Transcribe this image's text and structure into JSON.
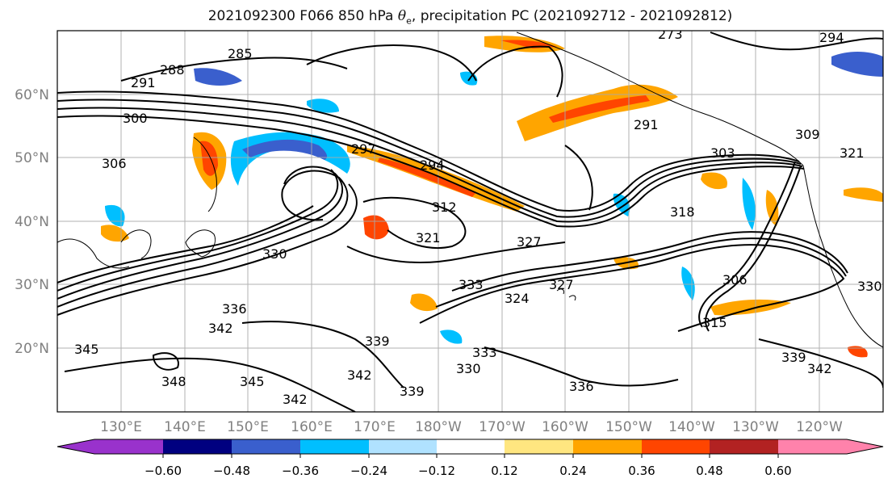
{
  "title": {
    "prefix": "2021092300 F066 850 hPa ",
    "symbol": "θ",
    "subscript": "e",
    "suffix": ", precipitation PC (2021092712 - 2021092812)"
  },
  "map": {
    "projection": "PlateCarree",
    "lat_ticks": [
      "60°N",
      "50°N",
      "40°N",
      "30°N",
      "20°N"
    ],
    "lon_ticks": [
      "130°E",
      "140°E",
      "150°E",
      "160°E",
      "170°E",
      "180°W",
      "170°W",
      "160°W",
      "150°W",
      "140°W",
      "130°W",
      "120°W"
    ],
    "contour_labels": [
      "273",
      "294",
      "285",
      "288",
      "291",
      "300",
      "306",
      "297",
      "294",
      "291",
      "303",
      "309",
      "321",
      "312",
      "318",
      "321",
      "327",
      "324",
      "327",
      "330",
      "333",
      "336",
      "342",
      "345",
      "348",
      "345",
      "342",
      "339",
      "339",
      "342",
      "336",
      "333",
      "330",
      "339",
      "342",
      "306",
      "315",
      "330"
    ],
    "contour_color": "#000000",
    "coastline_color": "#000000",
    "gridline_color": "#aaaaaa"
  },
  "colorbar": {
    "levels": [
      "−0.60",
      "−0.48",
      "−0.36",
      "−0.24",
      "−0.12",
      "0.12",
      "0.24",
      "0.36",
      "0.48",
      "0.60"
    ],
    "colors": [
      "#9932cc",
      "#000080",
      "#3a5fcd",
      "#00bfff",
      "#b0e2ff",
      "#ffffff",
      "#ffe680",
      "#ffa500",
      "#ff4500",
      "#b22222",
      "#ff82ab"
    ]
  }
}
